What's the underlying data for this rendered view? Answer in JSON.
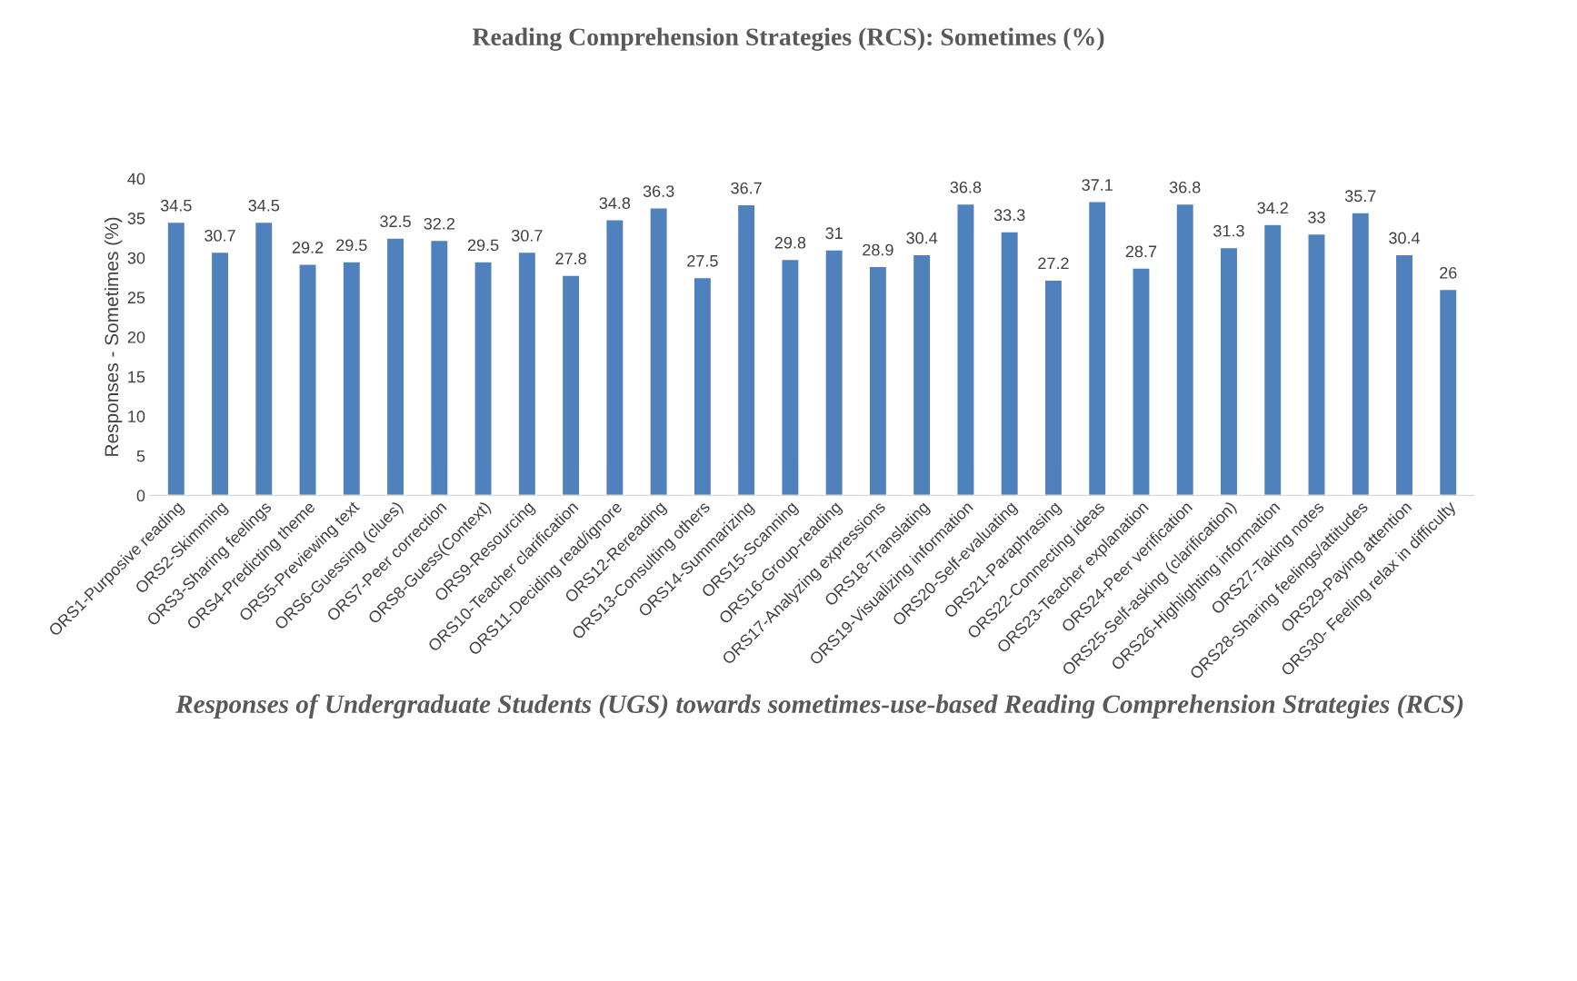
{
  "chart_data": {
    "type": "bar",
    "title": "Reading Comprehension Strategies (RCS): Sometimes (%)",
    "xlabel": "Responses of Undergraduate Students (UGS) towards sometimes-use-based Reading Comprehension Strategies (RCS)",
    "ylabel": "Responses - Sometimes (%)",
    "categories": [
      "ORS1-Purposive reading",
      "ORS2-Skimming",
      "ORS3-Sharing feelings",
      "ORS4-Predicting theme",
      "ORS5-Previewing text",
      "ORS6-Guessing (clues)",
      "ORS7-Peer correction",
      "ORS8-Guess(Context)",
      "ORS9-Resourcing",
      "ORS10-Teacher clarification",
      "ORS11-Deciding read/ignore",
      "ORS12-Rereading",
      "ORS13-Consulting others",
      "ORS14-Summarizing",
      "ORS15-Scanning",
      "ORS16-Group-reading",
      "ORS17-Analyzing expressions",
      "ORS18-Translating",
      "ORS19-Visualizing information",
      "ORS20-Self-evaluating",
      "ORS21-Paraphrasing",
      "ORS22-Connecting ideas",
      "ORS23-Teacher explanation",
      "ORS24-Peer verification",
      "ORS25-Self-asking (clarification)",
      "ORS26-Highlighting information",
      "ORS27-Taking notes",
      "ORS28-Sharing feelings/attitudes",
      "ORS29-Paying attention",
      "ORS30- Feeling relax in difficulty"
    ],
    "values": [
      34.5,
      30.7,
      34.5,
      29.2,
      29.5,
      32.5,
      32.2,
      29.5,
      30.7,
      27.8,
      34.8,
      36.3,
      27.5,
      36.7,
      29.8,
      31,
      28.9,
      30.4,
      36.8,
      33.3,
      27.2,
      37.1,
      28.7,
      36.8,
      31.3,
      34.2,
      33,
      35.7,
      30.4,
      26
    ],
    "color": "#4f81bd",
    "ylim": [
      0,
      40
    ],
    "yticks": [
      0,
      5,
      10,
      15,
      20,
      25,
      30,
      35,
      40
    ],
    "data_labels": true,
    "grid": false,
    "legend": false
  }
}
